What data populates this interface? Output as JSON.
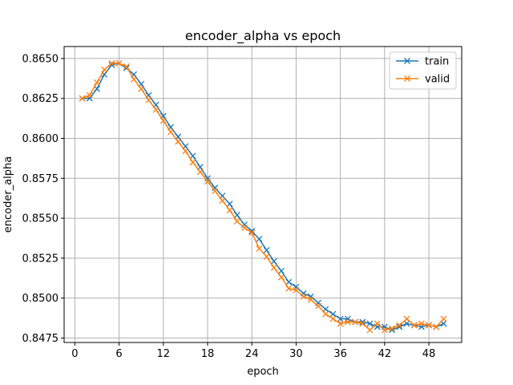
{
  "chart_data": {
    "type": "line",
    "title": "encoder_alpha vs epoch",
    "xlabel": "epoch",
    "ylabel": "encoder_alpha",
    "xlim": [
      -1.45,
      52.45
    ],
    "ylim": [
      0.84722,
      0.86575
    ],
    "xticks": [
      0,
      6,
      12,
      18,
      24,
      30,
      36,
      42,
      48
    ],
    "yticks": [
      0.8475,
      0.85,
      0.8525,
      0.855,
      0.8575,
      0.86,
      0.8625,
      0.865
    ],
    "ytick_labels": [
      "0.8475",
      "0.8500",
      "0.8525",
      "0.8550",
      "0.8575",
      "0.8600",
      "0.8625",
      "0.8650"
    ],
    "grid": true,
    "legend_position": "top-right",
    "x": [
      1,
      2,
      3,
      4,
      5,
      6,
      7,
      8,
      9,
      10,
      11,
      12,
      13,
      14,
      15,
      16,
      17,
      18,
      19,
      20,
      21,
      22,
      23,
      24,
      25,
      26,
      27,
      28,
      29,
      30,
      31,
      32,
      33,
      34,
      35,
      36,
      37,
      38,
      39,
      40,
      41,
      42,
      43,
      44,
      45,
      46,
      47,
      48,
      49,
      50
    ],
    "series": [
      {
        "name": "train",
        "color": "#1f77b4",
        "marker": "x",
        "values": [
          0.8625,
          0.8625,
          0.8631,
          0.864,
          0.8646,
          0.8647,
          0.8644,
          0.864,
          0.8634,
          0.8627,
          0.8621,
          0.8614,
          0.8607,
          0.8601,
          0.8595,
          0.8589,
          0.8582,
          0.8575,
          0.8569,
          0.8564,
          0.8559,
          0.8552,
          0.8546,
          0.8542,
          0.8537,
          0.853,
          0.8523,
          0.8517,
          0.851,
          0.8507,
          0.8503,
          0.8501,
          0.8497,
          0.8493,
          0.849,
          0.8487,
          0.8487,
          0.8485,
          0.8485,
          0.8484,
          0.8482,
          0.8482,
          0.848,
          0.8482,
          0.8484,
          0.8483,
          0.8482,
          0.8483,
          0.8482,
          0.8484
        ]
      },
      {
        "name": "valid",
        "color": "#ff7f0e",
        "marker": "x",
        "values": [
          0.8625,
          0.8627,
          0.8635,
          0.8643,
          0.8647,
          0.8647,
          0.8645,
          0.8637,
          0.8631,
          0.8624,
          0.8618,
          0.8611,
          0.8604,
          0.8598,
          0.8592,
          0.8585,
          0.8579,
          0.8573,
          0.8567,
          0.8561,
          0.8555,
          0.8548,
          0.8544,
          0.8541,
          0.8531,
          0.8526,
          0.8519,
          0.8513,
          0.8506,
          0.8505,
          0.8501,
          0.8499,
          0.8495,
          0.849,
          0.8487,
          0.8484,
          0.8485,
          0.8485,
          0.8484,
          0.848,
          0.8484,
          0.848,
          0.8481,
          0.8483,
          0.8487,
          0.8483,
          0.8484,
          0.8483,
          0.8482,
          0.8487
        ]
      }
    ]
  }
}
